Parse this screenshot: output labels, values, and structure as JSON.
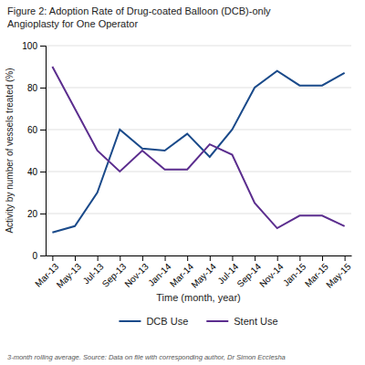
{
  "chart_data": {
    "type": "line",
    "title": [
      "Figure 2: Adoption Rate of Drug-coated Balloon (DCB)-only",
      "Angioplasty for One Operator"
    ],
    "xlabel": "Time (month, year)",
    "ylabel": "Activity by number of vessels treated (%)",
    "footnote": "3-month rolling average. Source: Data on file with corresponding author, Dr Simon Ecclesha",
    "categories": [
      "Mar-13",
      "May-13",
      "Jul-13",
      "Sep-13",
      "Nov-13",
      "Jan-14",
      "Mar-14",
      "May-14",
      "Jul-14",
      "Sep-14",
      "Nov-14",
      "Jan-15",
      "Mar-15",
      "May-15"
    ],
    "series": [
      {
        "name": "DCB Use",
        "color": "#1a4a8a",
        "values": [
          11,
          14,
          30,
          60,
          51,
          50,
          58,
          47,
          60,
          80,
          88,
          81,
          81,
          87
        ]
      },
      {
        "name": "Stent Use",
        "color": "#5b2d8e",
        "values": [
          90,
          70,
          50,
          40,
          50,
          41,
          41,
          53,
          48,
          25,
          13,
          19,
          19,
          14
        ]
      }
    ],
    "ylim": [
      0,
      100
    ],
    "yticks": [
      0,
      20,
      40,
      60,
      80,
      100
    ],
    "grid": true,
    "legend": "bottom"
  }
}
